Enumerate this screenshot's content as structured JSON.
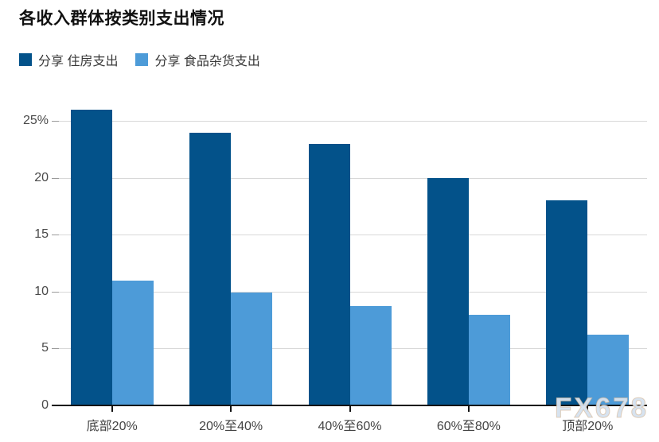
{
  "chart": {
    "title": "各收入群体按类别支出情况",
    "legend": [
      {
        "label": "分享 住房支出",
        "color": "#03528a"
      },
      {
        "label": "分享 食品杂货支出",
        "color": "#4d9bd8"
      }
    ]
  },
  "watermark": {
    "text": "FX678"
  },
  "chart_data": {
    "type": "bar",
    "title": "各收入群体按类别支出情况",
    "categories": [
      "底部20%",
      "20%至40%",
      "40%至60%",
      "60%至80%",
      "顶部20%"
    ],
    "series": [
      {
        "name": "分享 住房支出",
        "color": "#03528a",
        "values": [
          26,
          24,
          23,
          20,
          18
        ]
      },
      {
        "name": "分享 食品杂货支出",
        "color": "#4d9bd8",
        "values": [
          11,
          9.9,
          8.7,
          8,
          6.2
        ]
      }
    ],
    "xlabel": "",
    "ylabel": "",
    "ylim": [
      0,
      27
    ],
    "yticks": [
      0,
      5,
      10,
      15,
      20,
      25
    ],
    "ytick_labels": [
      "0",
      "5",
      "10",
      "15",
      "20",
      "25%"
    ],
    "grid": "horizontal",
    "legend_position": "top-left",
    "bar_unit": "percent"
  }
}
